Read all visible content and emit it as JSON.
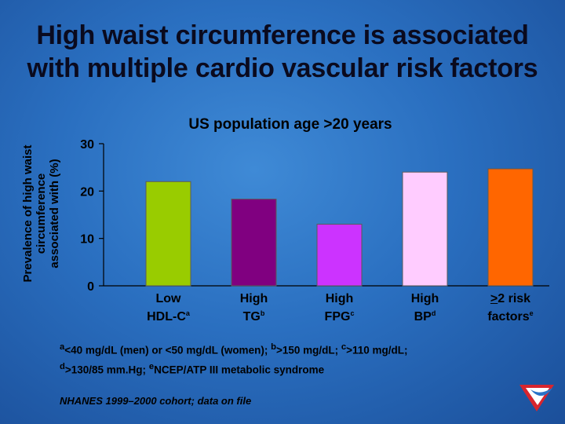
{
  "title": {
    "line1": "High waist circumference is associated",
    "line2": "with multiple cardio vascular risk factors"
  },
  "chart_data": {
    "type": "bar",
    "title": "US population age >20 years",
    "ylabel_lines": [
      "Prevalence of high waist",
      "circumference",
      "associated with (%)"
    ],
    "ylim": [
      0,
      30
    ],
    "yticks": [
      "0",
      "10",
      "20",
      "30"
    ],
    "grid": false,
    "categories": [
      {
        "line1": "Low",
        "line2": "HDL-C",
        "sup": "a"
      },
      {
        "line1": "High",
        "line2": "TG",
        "sup": "b"
      },
      {
        "line1": "High",
        "line2": "FPG",
        "sup": "c"
      },
      {
        "line1": "High",
        "line2": "BP",
        "sup": "d"
      },
      {
        "line1": ">2 risk",
        "line2": "factors",
        "sup": "e"
      }
    ],
    "values": [
      22,
      18.3,
      13,
      24,
      24.7
    ],
    "colors": [
      "#99cc00",
      "#800080",
      "#cc33ff",
      "#ffccff",
      "#ff6600"
    ]
  },
  "footnotes": {
    "line1": [
      {
        "sup": "a",
        "text": "<40 mg/dL (men) or <50 mg/dL (women); "
      },
      {
        "sup": "b",
        "text": ">150 mg/dL; "
      },
      {
        "sup": "c",
        "text": ">110 mg/dL;"
      }
    ],
    "line2": [
      {
        "sup": "d",
        "text": ">130/85 mm.Hg; "
      },
      {
        "sup": "e",
        "text": "NCEP/ATP III metabolic syndrome"
      }
    ]
  },
  "source": "NHANES 1999–2000 cohort; data on file",
  "logo": "brand-logo"
}
